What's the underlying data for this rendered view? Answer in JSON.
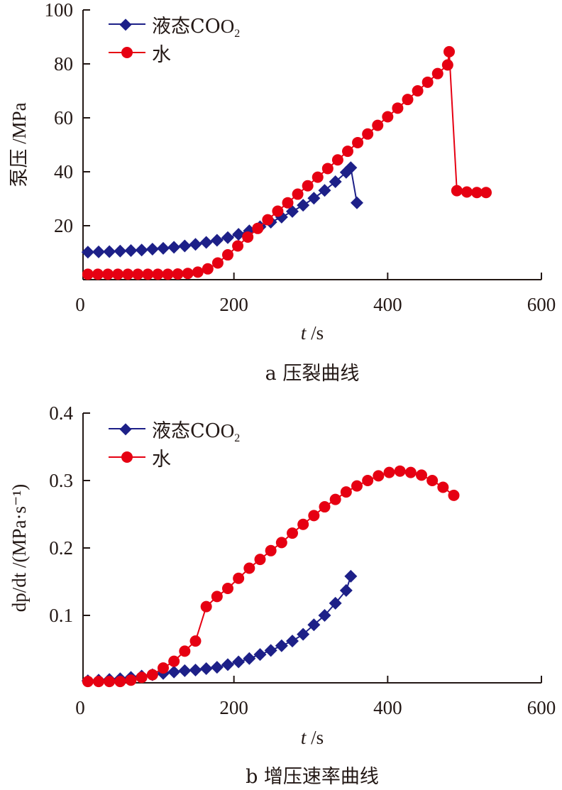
{
  "colors": {
    "co2": "#1d2088",
    "water": "#e60012",
    "axis": "#231815"
  },
  "chart_data": [
    {
      "id": "a",
      "type": "line",
      "caption": "a  压裂曲线",
      "xlabel_italic": "t",
      "xlabel_unit": " /s",
      "ylabel": "泵压 /MPa",
      "xlim": [
        0,
        600
      ],
      "ylim": [
        0,
        100
      ],
      "xticks": [
        "0",
        "200",
        "400",
        "600"
      ],
      "yticks": [
        "20",
        "40",
        "60",
        "80",
        "100"
      ],
      "legend": {
        "placement": "top-left",
        "entries": [
          "液态CO",
          "水"
        ]
      },
      "series": [
        {
          "name": "液态CO2",
          "marker": "diamond",
          "x": [
            10,
            24,
            38,
            52,
            66,
            80,
            94,
            108,
            122,
            136,
            150,
            164,
            178,
            192,
            206,
            220,
            234,
            248,
            262,
            276,
            290,
            304,
            318,
            332,
            346,
            352,
            360
          ],
          "y": [
            10.2,
            10.3,
            10.4,
            10.6,
            10.8,
            11.0,
            11.3,
            11.6,
            12.0,
            12.5,
            13.1,
            13.8,
            14.6,
            15.6,
            16.8,
            18.1,
            19.6,
            21.3,
            23.2,
            25.3,
            27.6,
            30.2,
            33.1,
            36.3,
            39.8,
            41.5,
            28.5
          ]
        },
        {
          "name": "水",
          "marker": "circle",
          "x": [
            10,
            23,
            36,
            49,
            62,
            75,
            88,
            101,
            114,
            127,
            140,
            153,
            166,
            179,
            192,
            205,
            218,
            231,
            244,
            257,
            270,
            283,
            296,
            309,
            322,
            335,
            348,
            361,
            374,
            387,
            400,
            413,
            426,
            439,
            452,
            465,
            478,
            480,
            490,
            503,
            516,
            528
          ],
          "y": [
            2.0,
            2.0,
            2.0,
            2.0,
            2.0,
            2.0,
            2.0,
            2.0,
            2.0,
            2.1,
            2.3,
            2.8,
            4.0,
            6.2,
            9.2,
            12.5,
            15.8,
            19.0,
            22.2,
            25.4,
            28.5,
            31.7,
            34.8,
            38.0,
            41.2,
            44.4,
            47.6,
            50.8,
            54.0,
            57.2,
            60.4,
            63.6,
            66.8,
            70.0,
            73.2,
            76.4,
            79.6,
            84.5,
            33.0,
            32.5,
            32.3,
            32.3
          ]
        }
      ]
    },
    {
      "id": "b",
      "type": "line",
      "caption": "b  增压速率曲线",
      "xlabel_italic": "t",
      "xlabel_unit": " /s",
      "ylabel": "dp/dt /(MPa·s⁻¹)",
      "xlim": [
        0,
        600
      ],
      "ylim": [
        0,
        0.4
      ],
      "xticks": [
        "0",
        "200",
        "400",
        "600"
      ],
      "yticks": [
        "0.1",
        "0.2",
        "0.3",
        "0.4"
      ],
      "legend": {
        "placement": "top-left",
        "entries": [
          "液态CO",
          "水"
        ]
      },
      "series": [
        {
          "name": "液态CO2",
          "marker": "diamond",
          "x": [
            10,
            24,
            38,
            52,
            66,
            80,
            94,
            108,
            122,
            136,
            150,
            164,
            178,
            192,
            206,
            220,
            234,
            248,
            262,
            276,
            290,
            304,
            318,
            332,
            346,
            352
          ],
          "y": [
            0.003,
            0.004,
            0.005,
            0.006,
            0.008,
            0.01,
            0.012,
            0.014,
            0.016,
            0.018,
            0.019,
            0.021,
            0.023,
            0.027,
            0.031,
            0.036,
            0.042,
            0.048,
            0.055,
            0.062,
            0.072,
            0.086,
            0.1,
            0.118,
            0.137,
            0.158
          ]
        },
        {
          "name": "水",
          "marker": "circle",
          "x": [
            10,
            24,
            38,
            52,
            66,
            80,
            94,
            108,
            122,
            136,
            150,
            164,
            178,
            192,
            206,
            220,
            234,
            248,
            262,
            276,
            290,
            304,
            318,
            332,
            346,
            360,
            374,
            388,
            402,
            416,
            430,
            444,
            458,
            472,
            486
          ],
          "y": [
            0.002,
            0.002,
            0.002,
            0.002,
            0.004,
            0.008,
            0.012,
            0.022,
            0.032,
            0.047,
            0.062,
            0.113,
            0.128,
            0.14,
            0.155,
            0.17,
            0.183,
            0.196,
            0.208,
            0.222,
            0.235,
            0.248,
            0.261,
            0.272,
            0.283,
            0.292,
            0.3,
            0.307,
            0.312,
            0.314,
            0.312,
            0.308,
            0.3,
            0.29,
            0.278
          ]
        }
      ]
    }
  ]
}
